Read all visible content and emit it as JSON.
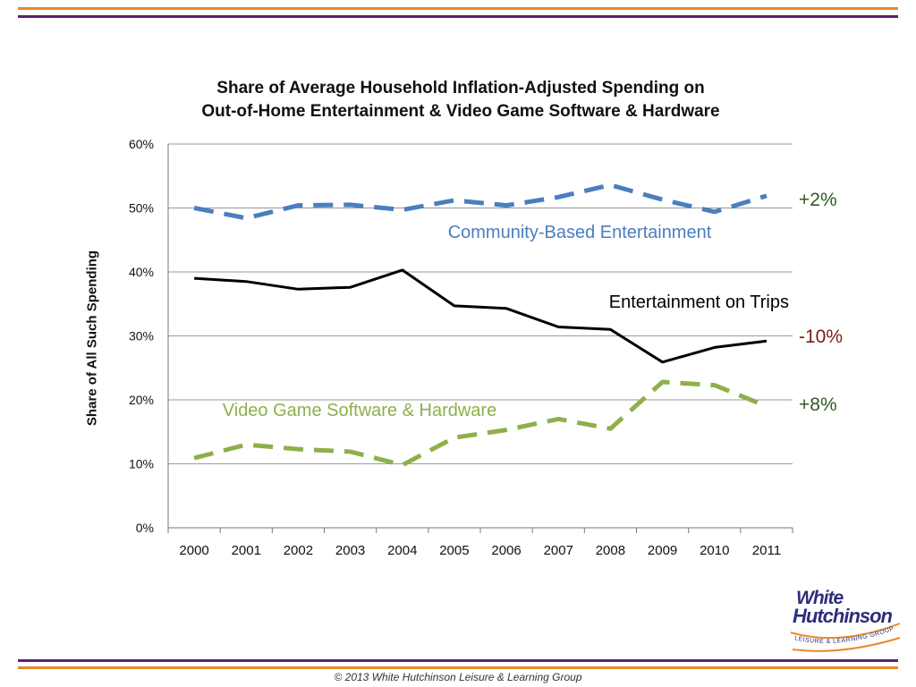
{
  "chart_data": {
    "type": "line",
    "title_line1": "Share of Average Household Inflation-Adjusted Spending on",
    "title_line2": "Out-of-Home Entertainment & Video Game Software & Hardware",
    "xlabel": "",
    "ylabel": "Share of All Such Spending",
    "ylim": [
      0,
      60
    ],
    "yticks": [
      "0%",
      "10%",
      "20%",
      "30%",
      "40%",
      "50%",
      "60%"
    ],
    "grid": true,
    "x": [
      "2000",
      "2001",
      "2002",
      "2003",
      "2004",
      "2005",
      "2006",
      "2007",
      "2008",
      "2009",
      "2010",
      "2011"
    ],
    "series": [
      {
        "name": "Community-Based Entertainment",
        "values": [
          50.0,
          48.4,
          50.4,
          50.5,
          49.7,
          51.2,
          50.4,
          51.7,
          53.6,
          51.3,
          49.4,
          51.9
        ],
        "color": "#4a7ebf",
        "style": "dashed",
        "change": "+2%",
        "change_color": "#2f5a1f"
      },
      {
        "name": "Entertainment on Trips",
        "values": [
          39.0,
          38.5,
          37.3,
          37.6,
          40.3,
          34.7,
          34.3,
          31.4,
          31.0,
          25.9,
          28.2,
          29.2
        ],
        "color": "#000000",
        "style": "solid",
        "change": "-10%",
        "change_color": "#7b1a12"
      },
      {
        "name": "Video Game Software & Hardware",
        "values": [
          10.9,
          13.0,
          12.3,
          11.9,
          9.8,
          14.1,
          15.3,
          17.0,
          15.5,
          22.8,
          22.3,
          19.0
        ],
        "color": "#8db04a",
        "style": "dashed",
        "change": "+8%",
        "change_color": "#2f5a1f"
      }
    ]
  },
  "branding": {
    "logo_line1": "White",
    "logo_line2": "Hutchinson",
    "logo_arc_text": "LEISURE & LEARNING GROUP",
    "colors": {
      "orange": "#e8892b",
      "purple": "#5b2070",
      "navy": "#2b2f7a"
    }
  },
  "footer": {
    "copyright": "© 2013 White Hutchinson Leisure & Learning Group"
  }
}
